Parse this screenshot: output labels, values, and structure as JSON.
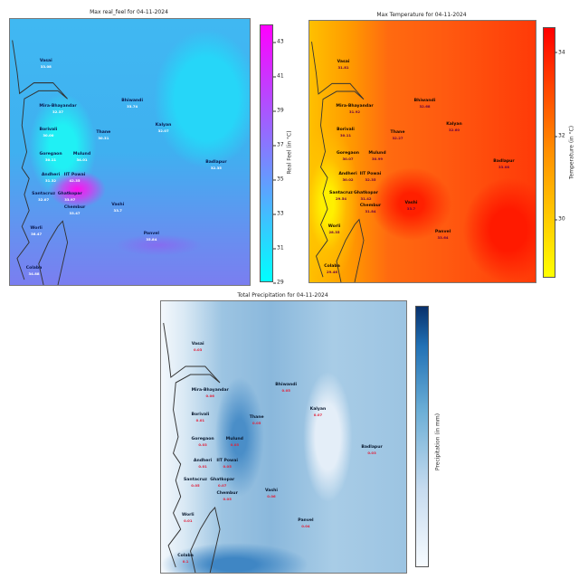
{
  "chart_data": [
    {
      "type": "heatmap",
      "title": "Max real_feel for 04-11-2024",
      "colorbar_label": "Real Feel (in °C)",
      "colorbar_ticks": [
        "29",
        "31",
        "33",
        "35",
        "37",
        "39",
        "41",
        "43"
      ],
      "colorbar_range": [
        29,
        44
      ],
      "colormap": "cool",
      "stations": [
        {
          "name": "Vasai",
          "value": "33.08"
        },
        {
          "name": "Mira-Bhayandar",
          "value": "32.37"
        },
        {
          "name": "Borivali",
          "value": "30.00"
        },
        {
          "name": "Thane",
          "value": "30.31"
        },
        {
          "name": "Goregaon",
          "value": "30.11"
        },
        {
          "name": "Mulund",
          "value": "34.01"
        },
        {
          "name": "Andheri",
          "value": "31.32"
        },
        {
          "name": "IIT Powai",
          "value": "42.35"
        },
        {
          "name": "Santacruz",
          "value": "32.07"
        },
        {
          "name": "Ghatkopar",
          "value": "33.97"
        },
        {
          "name": "Chembur",
          "value": "33.47"
        },
        {
          "name": "Vashi",
          "value": "33.7"
        },
        {
          "name": "Worli",
          "value": "36.47"
        },
        {
          "name": "Colaba",
          "value": "34.88"
        },
        {
          "name": "Bhiwandi",
          "value": "33.74"
        },
        {
          "name": "Kalyan",
          "value": "32.07"
        },
        {
          "name": "Badlapur",
          "value": "32.35"
        },
        {
          "name": "Panvel",
          "value": "35.84"
        }
      ]
    },
    {
      "type": "heatmap",
      "title": "Max Temperature for 04-11-2024",
      "colorbar_label": "Temperature (in °C)",
      "colorbar_ticks": [
        "30",
        "32",
        "34"
      ],
      "colorbar_range": [
        28.6,
        34.6
      ],
      "colormap": "autumn_r",
      "stations": [
        {
          "name": "Vasai",
          "value": "31.81"
        },
        {
          "name": "Mira-Bhayandar",
          "value": "31.92"
        },
        {
          "name": "Borivali",
          "value": "30.11"
        },
        {
          "name": "Thane",
          "value": "32.27"
        },
        {
          "name": "Goregaon",
          "value": "30.07"
        },
        {
          "name": "Mulund",
          "value": "30.99"
        },
        {
          "name": "Andheri",
          "value": "30.02"
        },
        {
          "name": "IIT Powai",
          "value": "32.35"
        },
        {
          "name": "Santacruz",
          "value": "29.54"
        },
        {
          "name": "Ghatkopar",
          "value": "31.42"
        },
        {
          "name": "Chembur",
          "value": "31.84"
        },
        {
          "name": "Vashi",
          "value": "33.7"
        },
        {
          "name": "Worli",
          "value": "28.35"
        },
        {
          "name": "Colaba",
          "value": "29.46"
        },
        {
          "name": "Bhiwandi",
          "value": "32.68"
        },
        {
          "name": "Kalyan",
          "value": "32.60"
        },
        {
          "name": "Badlapur",
          "value": "33.08"
        },
        {
          "name": "Panvel",
          "value": "33.64"
        }
      ]
    },
    {
      "type": "heatmap",
      "title": "Total Precipitation for 04-11-2024",
      "colorbar_label": "Precipitation (in mm)",
      "colorbar_ticks": [],
      "colormap": "Blues",
      "stations": [
        {
          "name": "Vasai",
          "value": "0.03"
        },
        {
          "name": "Mira-Bhayandar",
          "value": "0.06"
        },
        {
          "name": "Borivali",
          "value": "0.01"
        },
        {
          "name": "Thane",
          "value": "0.05"
        },
        {
          "name": "Goregaon",
          "value": "0.03"
        },
        {
          "name": "Mulund",
          "value": "0.05"
        },
        {
          "name": "Andheri",
          "value": "0.01"
        },
        {
          "name": "IIT Powai",
          "value": "0.05"
        },
        {
          "name": "Santacruz",
          "value": "0.05"
        },
        {
          "name": "Ghatkopar",
          "value": "0.07"
        },
        {
          "name": "Chembur",
          "value": "0.05"
        },
        {
          "name": "Vashi",
          "value": "0.06"
        },
        {
          "name": "Worli",
          "value": "0.01"
        },
        {
          "name": "Colaba",
          "value": "0.1"
        },
        {
          "name": "Bhiwandi",
          "value": "0.05"
        },
        {
          "name": "Kalyan",
          "value": "0.07"
        },
        {
          "name": "Badlapur",
          "value": "0.03"
        },
        {
          "name": "Panvel",
          "value": "0.04"
        }
      ]
    }
  ]
}
